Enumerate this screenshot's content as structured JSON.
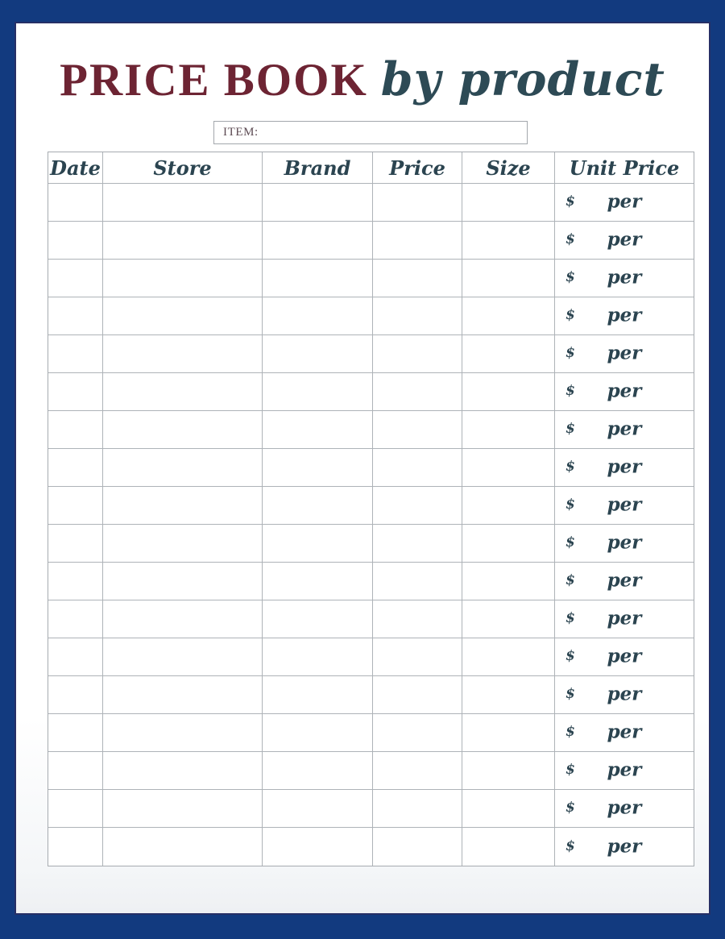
{
  "header": {
    "title_main": "PRICE BOOK",
    "title_accent": "by product"
  },
  "item_field": {
    "label": "ITEM:",
    "value": ""
  },
  "table": {
    "columns": [
      "Date",
      "Store",
      "Brand",
      "Price",
      "Size",
      "Unit Price"
    ],
    "row_count": 18,
    "rows": [
      {
        "date": "",
        "store": "",
        "brand": "",
        "price": "",
        "size": "",
        "currency": "$",
        "per": "per"
      },
      {
        "date": "",
        "store": "",
        "brand": "",
        "price": "",
        "size": "",
        "currency": "$",
        "per": "per"
      },
      {
        "date": "",
        "store": "",
        "brand": "",
        "price": "",
        "size": "",
        "currency": "$",
        "per": "per"
      },
      {
        "date": "",
        "store": "",
        "brand": "",
        "price": "",
        "size": "",
        "currency": "$",
        "per": "per"
      },
      {
        "date": "",
        "store": "",
        "brand": "",
        "price": "",
        "size": "",
        "currency": "$",
        "per": "per"
      },
      {
        "date": "",
        "store": "",
        "brand": "",
        "price": "",
        "size": "",
        "currency": "$",
        "per": "per"
      },
      {
        "date": "",
        "store": "",
        "brand": "",
        "price": "",
        "size": "",
        "currency": "$",
        "per": "per"
      },
      {
        "date": "",
        "store": "",
        "brand": "",
        "price": "",
        "size": "",
        "currency": "$",
        "per": "per"
      },
      {
        "date": "",
        "store": "",
        "brand": "",
        "price": "",
        "size": "",
        "currency": "$",
        "per": "per"
      },
      {
        "date": "",
        "store": "",
        "brand": "",
        "price": "",
        "size": "",
        "currency": "$",
        "per": "per"
      },
      {
        "date": "",
        "store": "",
        "brand": "",
        "price": "",
        "size": "",
        "currency": "$",
        "per": "per"
      },
      {
        "date": "",
        "store": "",
        "brand": "",
        "price": "",
        "size": "",
        "currency": "$",
        "per": "per"
      },
      {
        "date": "",
        "store": "",
        "brand": "",
        "price": "",
        "size": "",
        "currency": "$",
        "per": "per"
      },
      {
        "date": "",
        "store": "",
        "brand": "",
        "price": "",
        "size": "",
        "currency": "$",
        "per": "per"
      },
      {
        "date": "",
        "store": "",
        "brand": "",
        "price": "",
        "size": "",
        "currency": "$",
        "per": "per"
      },
      {
        "date": "",
        "store": "",
        "brand": "",
        "price": "",
        "size": "",
        "currency": "$",
        "per": "per"
      },
      {
        "date": "",
        "store": "",
        "brand": "",
        "price": "",
        "size": "",
        "currency": "$",
        "per": "per"
      },
      {
        "date": "",
        "store": "",
        "brand": "",
        "price": "",
        "size": "",
        "currency": "$",
        "per": "per"
      }
    ]
  },
  "colors": {
    "frame_navy": "#123a7f",
    "frame_inner_line": "#262f66",
    "title_maroon": "#6d2433",
    "accent_teal": "#2b4450",
    "grid_gray": "#aeb3b8",
    "item_label": "#5d4b53"
  }
}
